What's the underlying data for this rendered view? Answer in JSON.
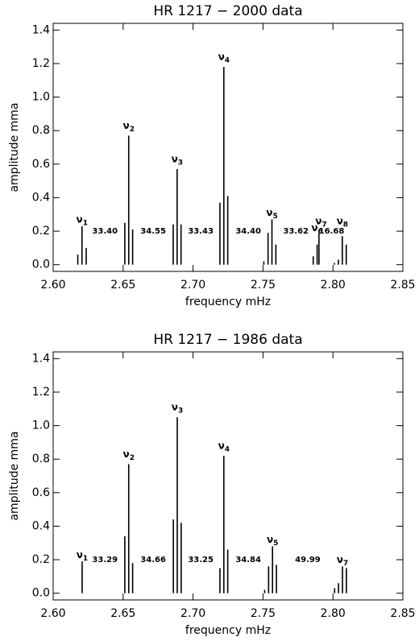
{
  "chart_data": [
    {
      "type": "bar",
      "title": "HR 1217 − 2000 data",
      "xlabel": "frequency mHz",
      "ylabel": "amplitude mma",
      "x": [
        2.6176,
        2.6206,
        2.6236,
        2.6512,
        2.654,
        2.6568,
        2.6858,
        2.6886,
        2.6914,
        2.7192,
        2.722,
        2.7248,
        2.7506,
        2.7536,
        2.7564,
        2.7592,
        2.7859,
        2.7887,
        2.79,
        2.8011,
        2.8039,
        2.8067,
        2.8095
      ],
      "values": [
        0.06,
        0.23,
        0.1,
        0.25,
        0.77,
        0.21,
        0.24,
        0.57,
        0.24,
        0.37,
        1.18,
        0.41,
        0.02,
        0.19,
        0.27,
        0.12,
        0.05,
        0.12,
        0.19,
        0.01,
        0.03,
        0.17,
        0.12
      ],
      "color": "#000000",
      "xlim": [
        2.6,
        2.85
      ],
      "ylim": [
        -0.04,
        1.44
      ],
      "xticks": [
        {
          "value": 2.6,
          "label": "2.60"
        },
        2.65,
        {
          "value": 2.7,
          "label": "2.70"
        },
        2.75,
        {
          "value": 2.8,
          "label": "2.80"
        },
        2.85
      ],
      "yticks": [
        {
          "value": 0,
          "label": "0.0"
        },
        0.2,
        0.4,
        0.6,
        0.8,
        {
          "value": 1,
          "label": "1.0"
        },
        1.2,
        1.4
      ],
      "peak_labels": [
        {
          "symbol": "ν",
          "index": "1",
          "x": 2.6206,
          "y": 0.27
        },
        {
          "symbol": "ν",
          "index": "2",
          "x": 2.654,
          "y": 0.83
        },
        {
          "symbol": "ν",
          "index": "3",
          "x": 2.6886,
          "y": 0.63
        },
        {
          "symbol": "ν",
          "index": "4",
          "x": 2.722,
          "y": 1.24
        },
        {
          "symbol": "ν",
          "index": "5",
          "x": 2.7564,
          "y": 0.31
        },
        {
          "symbol": "ν",
          "index": "6",
          "x": 2.7887,
          "y": 0.22
        },
        {
          "symbol": "ν",
          "index": "7",
          "x": 2.7915,
          "y": 0.26
        },
        {
          "symbol": "ν",
          "index": "8",
          "x": 2.8067,
          "y": 0.26
        }
      ],
      "spacing_labels": [
        {
          "text": "33.40",
          "x": 2.637,
          "y": 0.2
        },
        {
          "text": "34.55",
          "x": 2.6715,
          "y": 0.2
        },
        {
          "text": "33.43",
          "x": 2.7055,
          "y": 0.2
        },
        {
          "text": "34.40",
          "x": 2.7395,
          "y": 0.2
        },
        {
          "text": "33.62",
          "x": 2.7735,
          "y": 0.2
        },
        {
          "text": "16.68",
          "x": 2.799,
          "y": 0.2
        }
      ]
    },
    {
      "type": "bar",
      "title": "HR 1217 − 1986 data",
      "xlabel": "frequency mHz",
      "ylabel": "amplitude mma",
      "x": [
        2.6207,
        2.6512,
        2.654,
        2.6568,
        2.6859,
        2.6887,
        2.6915,
        2.7192,
        2.722,
        2.7248,
        2.7512,
        2.754,
        2.7568,
        2.7596,
        2.8012,
        2.804,
        2.8068,
        2.8096
      ],
      "values": [
        0.19,
        0.34,
        0.77,
        0.18,
        0.44,
        1.05,
        0.42,
        0.15,
        0.82,
        0.26,
        0.02,
        0.16,
        0.28,
        0.17,
        0.03,
        0.06,
        0.16,
        0.15
      ],
      "color": "#000000",
      "xlim": [
        2.6,
        2.85
      ],
      "ylim": [
        -0.04,
        1.44
      ],
      "xticks": [
        {
          "value": 2.6,
          "label": "2.60"
        },
        2.65,
        {
          "value": 2.7,
          "label": "2.70"
        },
        2.75,
        {
          "value": 2.8,
          "label": "2.80"
        },
        2.85
      ],
      "yticks": [
        {
          "value": 0,
          "label": "0.0"
        },
        0.2,
        0.4,
        0.6,
        0.8,
        {
          "value": 1,
          "label": "1.0"
        },
        1.2,
        1.4
      ],
      "peak_labels": [
        {
          "symbol": "ν",
          "index": "1",
          "x": 2.6207,
          "y": 0.23
        },
        {
          "symbol": "ν",
          "index": "2",
          "x": 2.654,
          "y": 0.83
        },
        {
          "symbol": "ν",
          "index": "3",
          "x": 2.6887,
          "y": 1.11
        },
        {
          "symbol": "ν",
          "index": "4",
          "x": 2.722,
          "y": 0.88
        },
        {
          "symbol": "ν",
          "index": "5",
          "x": 2.7568,
          "y": 0.32
        },
        {
          "symbol": "ν",
          "index": "7",
          "x": 2.8068,
          "y": 0.2
        }
      ],
      "spacing_labels": [
        {
          "text": "33.29",
          "x": 2.637,
          "y": 0.2
        },
        {
          "text": "34.66",
          "x": 2.6715,
          "y": 0.2
        },
        {
          "text": "33.25",
          "x": 2.7055,
          "y": 0.2
        },
        {
          "text": "34.84",
          "x": 2.7395,
          "y": 0.2
        },
        {
          "text": "49.99",
          "x": 2.782,
          "y": 0.2
        }
      ]
    }
  ]
}
